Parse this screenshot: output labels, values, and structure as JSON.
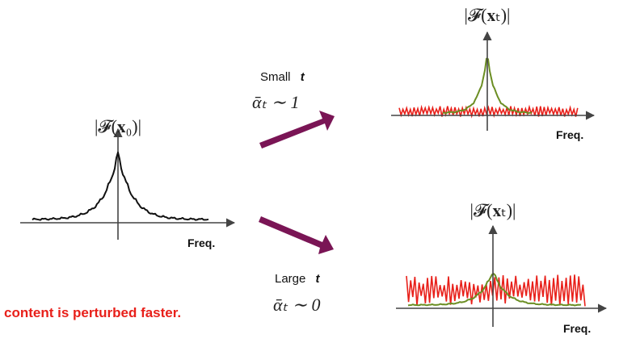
{
  "colors": {
    "arrow": "#7a1555",
    "signal": "#111111",
    "signal_perturbed": "#6b8e23",
    "noise": "#e8201a",
    "axis": "#444444",
    "caption": "#e8201a"
  },
  "left_plot": {
    "title": "|𝓕(𝐱₀)|",
    "axis_label": "Freq."
  },
  "top_plot": {
    "title": "|𝓕(𝐱ₜ)|",
    "axis_label": "Freq."
  },
  "bottom_plot": {
    "title": "|𝓕(𝐱ₜ)|",
    "axis_label": "Freq."
  },
  "arrow_small": {
    "label_prefix": "Small",
    "label_var": "t",
    "math": "ᾱₜ ∼ 1"
  },
  "arrow_large": {
    "label_prefix": "Large",
    "label_var": "t",
    "math": "ᾱₜ ∼ 0"
  },
  "caption": "content is perturbed faster."
}
